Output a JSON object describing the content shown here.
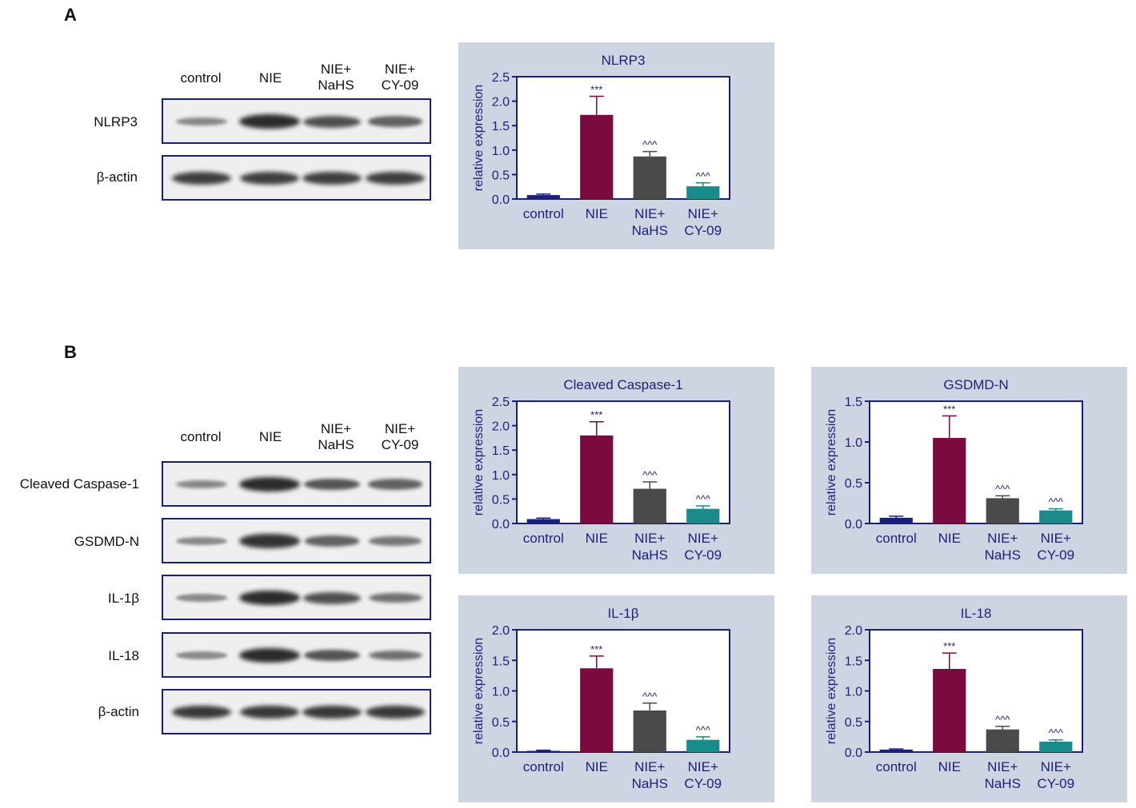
{
  "panels": [
    {
      "letter": "A",
      "lanes": [
        "control",
        "NIE",
        "NIE+\nNaHS",
        "NIE+\nCY-09"
      ],
      "blots": [
        {
          "label": "NLRP3",
          "intensity": [
            0.35,
            1.0,
            0.75,
            0.6
          ]
        },
        {
          "label": "β-actin",
          "intensity": [
            0.85,
            0.85,
            0.85,
            0.85
          ]
        }
      ]
    },
    {
      "letter": "B",
      "lanes": [
        "control",
        "NIE",
        "NIE+\nNaHS",
        "NIE+\nCY-09"
      ],
      "blots": [
        {
          "label": "Cleaved Caspase-1",
          "intensity": [
            0.35,
            1.0,
            0.7,
            0.6
          ]
        },
        {
          "label": "GSDMD-N",
          "intensity": [
            0.3,
            0.95,
            0.6,
            0.45
          ]
        },
        {
          "label": "IL-1β",
          "intensity": [
            0.3,
            1.0,
            0.75,
            0.5
          ]
        },
        {
          "label": "IL-18",
          "intensity": [
            0.3,
            1.0,
            0.7,
            0.5
          ]
        },
        {
          "label": "β-actin",
          "intensity": [
            0.9,
            0.9,
            0.9,
            0.9
          ]
        }
      ]
    }
  ],
  "colors": {
    "control": "#1a1f7a",
    "NIE": "#7b0a3e",
    "NIE+NaHS": "#4a4a4a",
    "NIE+CY-09": "#1a8a8a",
    "axis": "#1a1f7a",
    "panel_bg": "#cfd4e3"
  },
  "chart_data": [
    {
      "type": "bar",
      "title": "NLRP3",
      "ylabel": "relative expression",
      "xlabel": "",
      "categories": [
        "control",
        "NIE",
        "NIE+\nNaHS",
        "NIE+\nCY-09"
      ],
      "values": [
        0.08,
        1.72,
        0.87,
        0.26
      ],
      "errors": [
        0.02,
        0.38,
        0.1,
        0.07
      ],
      "annotations": [
        "",
        "***",
        "^^^",
        "^^^"
      ],
      "ylim": [
        0,
        2.5
      ],
      "yticks": [
        "0.0",
        "0.5",
        "1.0",
        "1.5",
        "2.0",
        "2.5"
      ]
    },
    {
      "type": "bar",
      "title": "Cleaved Caspase-1",
      "ylabel": "relative expression",
      "xlabel": "",
      "categories": [
        "control",
        "NIE",
        "NIE+\nNaHS",
        "NIE+\nCY-09"
      ],
      "values": [
        0.09,
        1.8,
        0.71,
        0.3
      ],
      "errors": [
        0.02,
        0.28,
        0.14,
        0.06
      ],
      "annotations": [
        "",
        "***",
        "^^^",
        "^^^"
      ],
      "ylim": [
        0,
        2.5
      ],
      "yticks": [
        "0.0",
        "0.5",
        "1.0",
        "1.5",
        "2.0",
        "2.5"
      ]
    },
    {
      "type": "bar",
      "title": "GSDMD-N",
      "ylabel": "relative expression",
      "xlabel": "",
      "categories": [
        "control",
        "NIE",
        "NIE+\nNaHS",
        "NIE+\nCY-09"
      ],
      "values": [
        0.07,
        1.05,
        0.31,
        0.16
      ],
      "errors": [
        0.02,
        0.27,
        0.03,
        0.02
      ],
      "annotations": [
        "",
        "***",
        "^^^",
        "^^^"
      ],
      "ylim": [
        0,
        1.5
      ],
      "yticks": [
        "0.0",
        "0.5",
        "1.0",
        "1.5"
      ]
    },
    {
      "type": "bar",
      "title": "IL-1β",
      "ylabel": "relative expression",
      "xlabel": "",
      "categories": [
        "control",
        "NIE",
        "NIE+\nNaHS",
        "NIE+\nCY-09"
      ],
      "values": [
        0.02,
        1.37,
        0.68,
        0.2
      ],
      "errors": [
        0.01,
        0.2,
        0.12,
        0.05
      ],
      "annotations": [
        "",
        "***",
        "^^^",
        "^^^"
      ],
      "ylim": [
        0,
        2.0
      ],
      "yticks": [
        "0.0",
        "0.5",
        "1.0",
        "1.5",
        "2.0"
      ]
    },
    {
      "type": "bar",
      "title": "IL-18",
      "ylabel": "relative expression",
      "xlabel": "",
      "categories": [
        "control",
        "NIE",
        "NIE+\nNaHS",
        "NIE+\nCY-09"
      ],
      "values": [
        0.04,
        1.36,
        0.37,
        0.17
      ],
      "errors": [
        0.01,
        0.26,
        0.05,
        0.03
      ],
      "annotations": [
        "",
        "***",
        "^^^",
        "^^^"
      ],
      "ylim": [
        0,
        2.0
      ],
      "yticks": [
        "0.0",
        "0.5",
        "1.0",
        "1.5",
        "2.0"
      ]
    }
  ]
}
